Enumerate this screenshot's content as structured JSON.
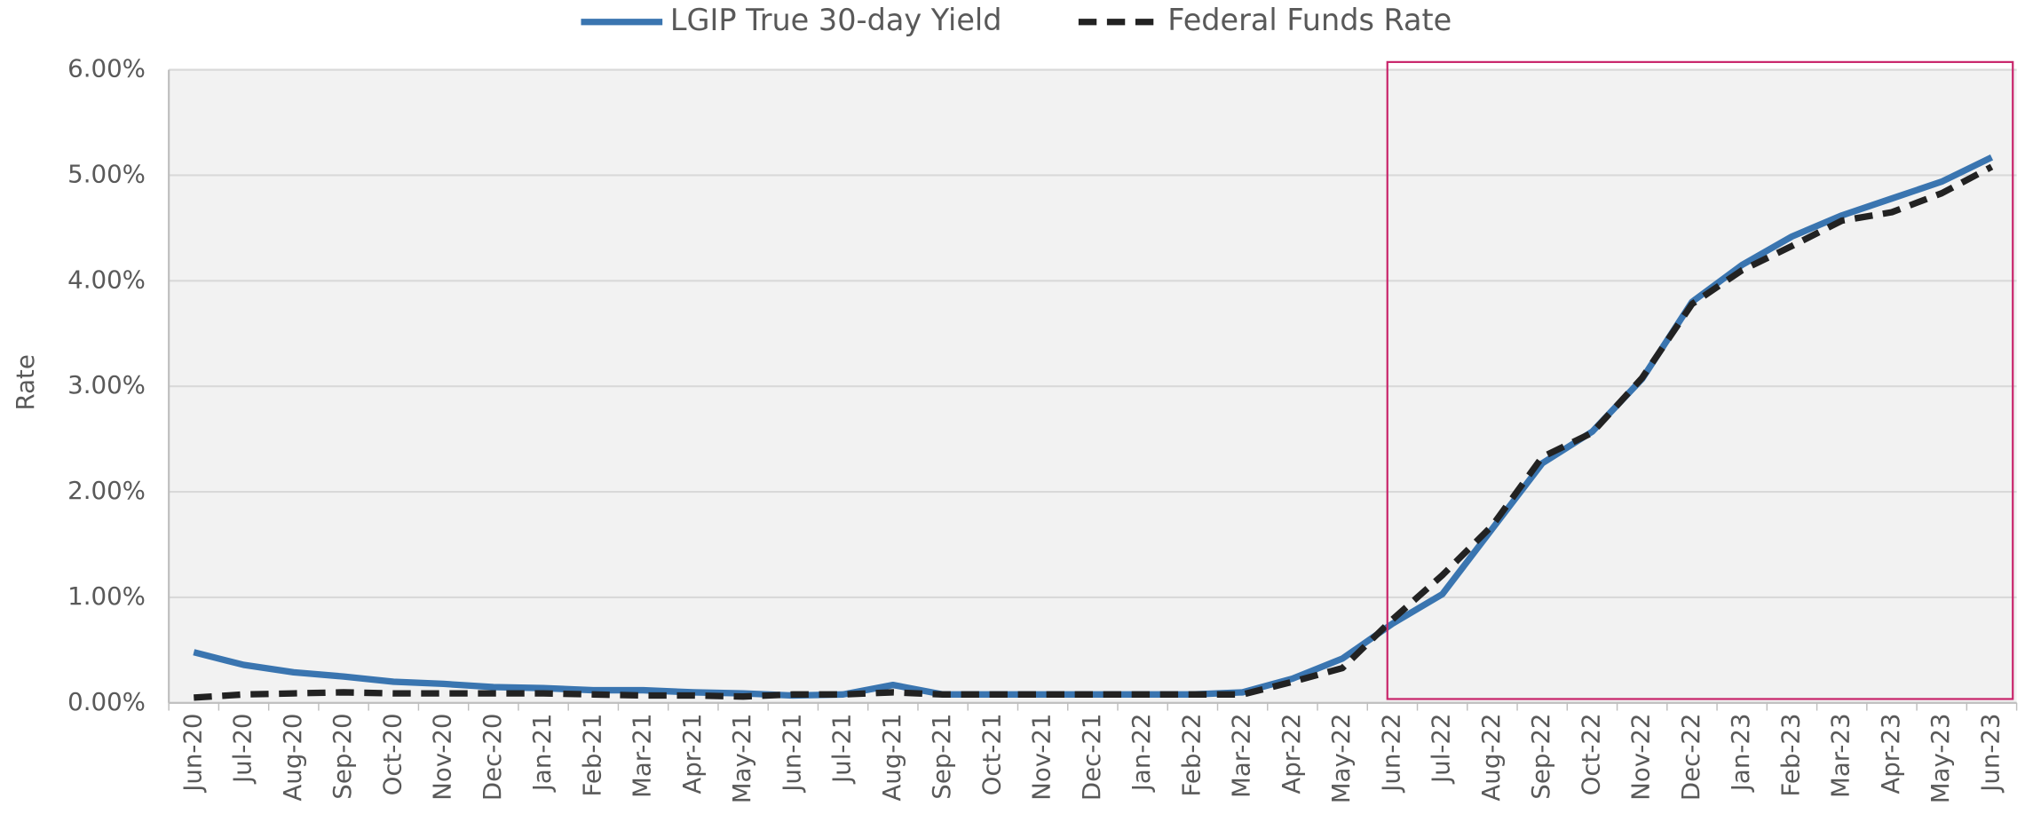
{
  "chart_data": {
    "type": "line",
    "y_label": "Rate",
    "categories": [
      "Jun-20",
      "Jul-20",
      "Aug-20",
      "Sep-20",
      "Oct-20",
      "Nov-20",
      "Dec-20",
      "Jan-21",
      "Feb-21",
      "Mar-21",
      "Apr-21",
      "May-21",
      "Jun-21",
      "Jul-21",
      "Aug-21",
      "Sep-21",
      "Oct-21",
      "Nov-21",
      "Dec-21",
      "Jan-22",
      "Feb-22",
      "Mar-22",
      "Apr-22",
      "May-22",
      "Jun-22",
      "Jul-22",
      "Aug-22",
      "Sep-22",
      "Oct-22",
      "Nov-22",
      "Dec-22",
      "Jan-23",
      "Feb-23",
      "Mar-23",
      "Apr-23",
      "May-23",
      "Jun-23"
    ],
    "series": [
      {
        "name": "LGIP True 30-day Yield",
        "color": "#3a75b0",
        "style": "solid",
        "values": [
          0.48,
          0.36,
          0.29,
          0.25,
          0.2,
          0.18,
          0.15,
          0.14,
          0.12,
          0.12,
          0.1,
          0.09,
          0.07,
          0.08,
          0.17,
          0.08,
          0.08,
          0.08,
          0.08,
          0.08,
          0.08,
          0.1,
          0.23,
          0.42,
          0.75,
          1.03,
          1.65,
          2.27,
          2.57,
          3.07,
          3.8,
          4.15,
          4.42,
          4.62,
          4.78,
          4.94,
          5.17
        ]
      },
      {
        "name": "Federal Funds Rate",
        "color": "#222222",
        "style": "dashed",
        "values": [
          0.05,
          0.08,
          0.09,
          0.1,
          0.09,
          0.09,
          0.09,
          0.09,
          0.08,
          0.07,
          0.07,
          0.06,
          0.08,
          0.08,
          0.1,
          0.08,
          0.08,
          0.08,
          0.08,
          0.08,
          0.08,
          0.08,
          0.2,
          0.33,
          0.79,
          1.21,
          1.68,
          2.33,
          2.56,
          3.08,
          3.78,
          4.1,
          4.33,
          4.57,
          4.65,
          4.83,
          5.08
        ]
      }
    ],
    "ylim": [
      0,
      6
    ],
    "yticks": [
      {
        "value": 0,
        "label": "0.00%"
      },
      {
        "value": 1,
        "label": "1.00%"
      },
      {
        "value": 2,
        "label": "2.00%"
      },
      {
        "value": 3,
        "label": "3.00%"
      },
      {
        "value": 4,
        "label": "4.00%"
      },
      {
        "value": 5,
        "label": "5.00%"
      },
      {
        "value": 6,
        "label": "6.00%"
      }
    ],
    "grid": true,
    "legend": "top"
  }
}
